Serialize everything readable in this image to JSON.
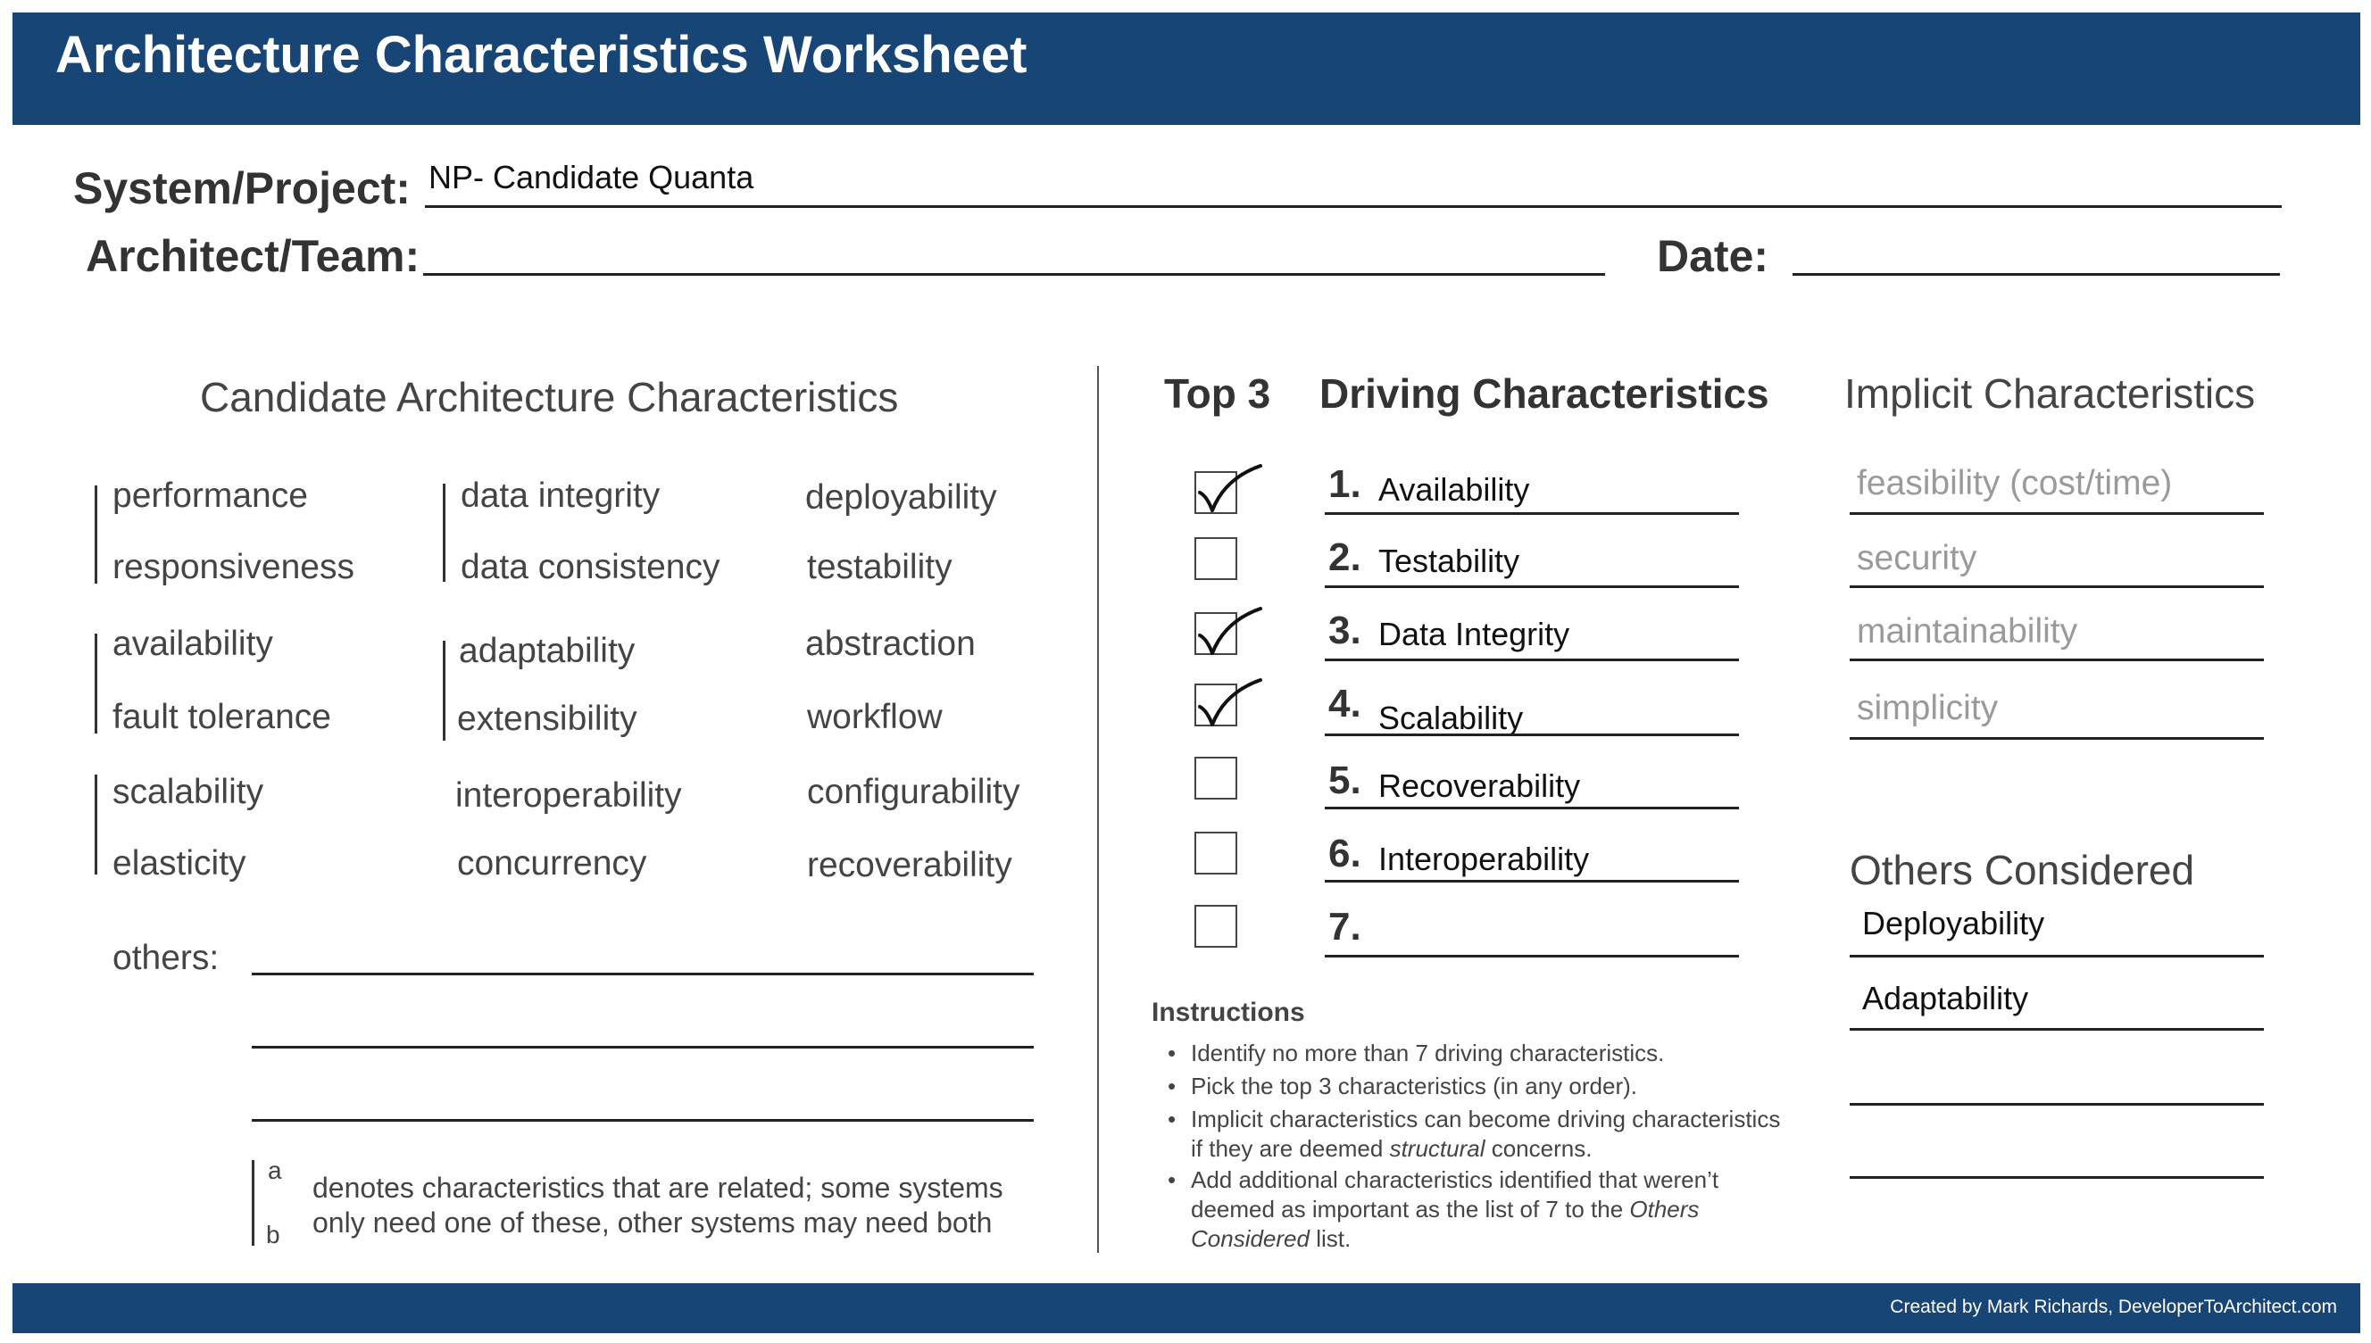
{
  "header": {
    "title": "Architecture Characteristics Worksheet"
  },
  "project": {
    "system_label": "System/Project:",
    "system_value": "NP- Candidate  Quanta",
    "architect_label": "Architect/Team:",
    "architect_value": "",
    "date_label": "Date:",
    "date_value": ""
  },
  "candidates": {
    "title": "Candidate Architecture Characteristics",
    "col1": [
      "performance",
      "responsiveness",
      "availability",
      "fault tolerance",
      "scalability",
      "elasticity"
    ],
    "col2": [
      "data integrity",
      "data consistency",
      "adaptability",
      "extensibility",
      "interoperability",
      "concurrency"
    ],
    "col3": [
      "deployability",
      "testability",
      "abstraction",
      "workflow",
      "configurability",
      "recoverability"
    ],
    "others_label": "others:",
    "legend_a": "a",
    "legend_b": "b",
    "legend_line1": "denotes characteristics that are related; some systems",
    "legend_line2": "only need one of these, other systems may need both"
  },
  "driving": {
    "top3_label": "Top 3",
    "title": "Driving Characteristics",
    "items": [
      {
        "num": "1.",
        "value": "Availability",
        "checked": true
      },
      {
        "num": "2.",
        "value": "Testability",
        "checked": false
      },
      {
        "num": "3.",
        "value": "Data Integrity",
        "checked": true
      },
      {
        "num": "4.",
        "value": "Scalability",
        "checked": true
      },
      {
        "num": "5.",
        "value": "Recoverability",
        "checked": false
      },
      {
        "num": "6.",
        "value": "Interoperability",
        "checked": false
      },
      {
        "num": "7.",
        "value": "",
        "checked": false
      }
    ]
  },
  "instructions": {
    "title": "Instructions",
    "bullet": "•",
    "item1": "Identify no more than 7 driving characteristics.",
    "item2": "Pick the top 3 characteristics (in any order).",
    "item3_a": "Implicit characteristics can become driving characteristics if they are deemed ",
    "item3_em": "structural",
    "item3_b": " concerns.",
    "item4_a": "Add additional characteristics identified that weren’t deemed as important as the list of 7 to the ",
    "item4_em": "Others Considered",
    "item4_b": " list."
  },
  "implicit": {
    "title": "Implicit Characteristics",
    "items": [
      "feasibility (cost/time)",
      "security",
      "maintainability",
      "simplicity"
    ]
  },
  "others_considered": {
    "title": "Others Considered",
    "items": [
      "Deployability",
      "Adaptability",
      "",
      ""
    ]
  },
  "footer": {
    "credit": "Created by Mark Richards, DeveloperToArchitect.com"
  },
  "colors": {
    "brand": "#164576"
  }
}
